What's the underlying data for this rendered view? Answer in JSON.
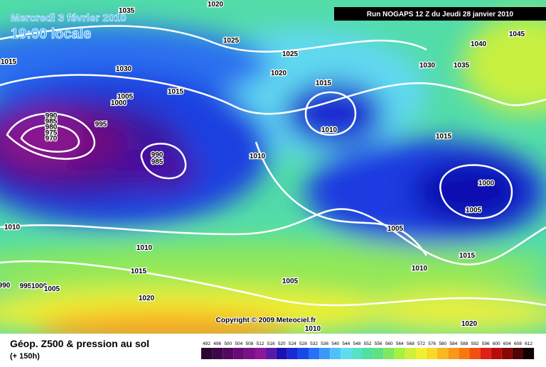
{
  "header": {
    "date": "Mercredi 3 février 2010",
    "time": "19:00 locale",
    "run": "Run NOGAPS 12 Z du Jeudi 28 janvier 2010"
  },
  "copyright": "Copyright © 2009 Meteociel.fr",
  "footer": {
    "title": "Géop. Z500 & pression au sol",
    "lead": "(+ 150h)"
  },
  "isobar_labels": [
    "1035",
    "1020",
    "1025",
    "1030",
    "1005",
    "1000",
    "995",
    "990",
    "985",
    "980",
    "975",
    "970",
    "1015",
    "990",
    "985",
    "1010",
    "1010",
    "1010",
    "1015",
    "1020",
    "990",
    "995",
    "1000",
    "1005",
    "1025",
    "1020",
    "1015",
    "1010",
    "1045",
    "1040",
    "1030",
    "1035",
    "1015",
    "1000",
    "1005",
    "1005",
    "1015",
    "1010",
    "1005",
    "1020",
    "1010",
    "1015"
  ],
  "legend": {
    "items": [
      {
        "value": 492,
        "color": "#2a0630"
      },
      {
        "value": 496,
        "color": "#3e0848"
      },
      {
        "value": 500,
        "color": "#520a5e"
      },
      {
        "value": 504,
        "color": "#660c74"
      },
      {
        "value": 508,
        "color": "#7a1088"
      },
      {
        "value": 512,
        "color": "#8e1698"
      },
      {
        "value": 516,
        "color": "#5a1aa8"
      },
      {
        "value": 520,
        "color": "#1c10b0"
      },
      {
        "value": 524,
        "color": "#1a2ad0"
      },
      {
        "value": 528,
        "color": "#1a48e8"
      },
      {
        "value": 532,
        "color": "#2870f4"
      },
      {
        "value": 536,
        "color": "#3c98f8"
      },
      {
        "value": 540,
        "color": "#50c0f8"
      },
      {
        "value": 544,
        "color": "#60dcf0"
      },
      {
        "value": 548,
        "color": "#58e0c8"
      },
      {
        "value": 552,
        "color": "#50e0a0"
      },
      {
        "value": 556,
        "color": "#60e080"
      },
      {
        "value": 560,
        "color": "#80e860"
      },
      {
        "value": 564,
        "color": "#a8f040"
      },
      {
        "value": 568,
        "color": "#d0f038"
      },
      {
        "value": 572,
        "color": "#f0f030"
      },
      {
        "value": 576,
        "color": "#f8d828"
      },
      {
        "value": 580,
        "color": "#f8b820"
      },
      {
        "value": 584,
        "color": "#f89818"
      },
      {
        "value": 588,
        "color": "#f87810"
      },
      {
        "value": 592,
        "color": "#f05010"
      },
      {
        "value": 596,
        "color": "#e02010"
      },
      {
        "value": 600,
        "color": "#b80c0c"
      },
      {
        "value": 604,
        "color": "#880808"
      },
      {
        "value": 608,
        "color": "#500404"
      },
      {
        "value": 612,
        "color": "#100000"
      }
    ]
  }
}
